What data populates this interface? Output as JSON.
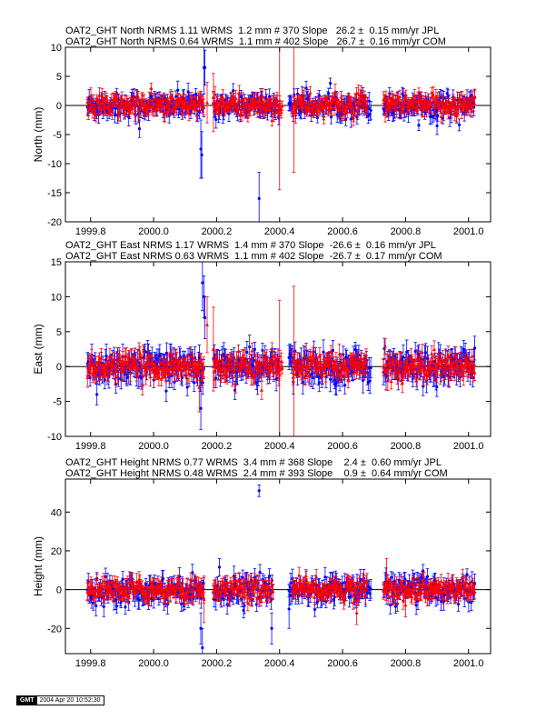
{
  "panels": [
    {
      "header_lines": [
        {
          "text": "OAT2_GHT North NRMS 1.11 WRMS  1.2 mm # 370 Slope   26.2 ±  0.15 mm/yr JPL",
          "color": "#0000ff"
        },
        {
          "text": "OAT2_GHT North NRMS 0.64 WRMS  1.1 mm # 402 Slope   26.7 ±  0.16 mm/yr COM",
          "color": "#ff0000"
        }
      ],
      "ylabel": "North (mm)"
    },
    {
      "header_lines": [
        {
          "text": "OAT2_GHT East NRMS 1.17 WRMS  1.4 mm # 370 Slope  -26.6 ±  0.16 mm/yr JPL",
          "color": "#0000ff"
        },
        {
          "text": "OAT2_GHT East NRMS 0.63 WRMS  1.1 mm # 402 Slope  -26.7 ±  0.17 mm/yr COM",
          "color": "#ff0000"
        }
      ],
      "ylabel": "East (mm)"
    },
    {
      "header_lines": [
        {
          "text": "OAT2_GHT Height NRMS 0.77 WRMS  3.4 mm # 368 Slope    2.4 ±  0.60 mm/yr JPL",
          "color": "#0000ff"
        },
        {
          "text": "OAT2_GHT Height NRMS 0.48 WRMS  2.4 mm # 393 Slope    0.9 ±  0.64 mm/yr COM",
          "color": "#ff0000"
        }
      ],
      "ylabel": "Height (mm)"
    }
  ],
  "gmt_badge": {
    "logo": "GMT",
    "stamp": "2004 Apr 20 10:52:30"
  },
  "chart_data": [
    {
      "type": "scatter",
      "title": "",
      "xlabel": "",
      "ylabel": "North (mm)",
      "xlim": [
        1999.72,
        2001.07
      ],
      "ylim": [
        -20,
        10
      ],
      "xticks": [
        "1999.8",
        "2000.0",
        "2000.2",
        "2000.4",
        "2000.6",
        "2000.8",
        "2001.0"
      ],
      "yticks": [
        "-20",
        "-15",
        "-10",
        "-5",
        "0",
        "5",
        "10"
      ],
      "zero_line": true,
      "series": [
        {
          "name": "JPL",
          "color": "#0000ff",
          "marker": "circle",
          "spread_sd": 1.0,
          "error_mm": 1.2,
          "segments": [
            [
              1999.79,
              2000.16
            ],
            [
              2000.19,
              2000.4
            ],
            [
              2000.43,
              2000.69
            ],
            [
              2000.73,
              2001.02
            ]
          ],
          "points": [
            {
              "x": 2000.15,
              "y": -7.5,
              "err": 5.0
            },
            {
              "x": 2000.153,
              "y": -8.5,
              "err": 4.0
            },
            {
              "x": 2000.16,
              "y": 6.5,
              "err": 4.5
            },
            {
              "x": 2000.163,
              "y": 6.5,
              "err": 3.0
            },
            {
              "x": 2000.335,
              "y": -16.0,
              "err": 4.5
            },
            {
              "x": 1999.955,
              "y": -4.0,
              "err": 1.5
            },
            {
              "x": 2000.9,
              "y": -3.5,
              "err": 1.5
            }
          ]
        },
        {
          "name": "COM",
          "color": "#ff0000",
          "marker": "triangle",
          "spread_sd": 0.9,
          "error_mm": 1.1,
          "segments": [
            [
              1999.79,
              2000.16
            ],
            [
              2000.19,
              2000.41
            ],
            [
              2000.44,
              2000.68
            ],
            [
              2000.73,
              2001.02
            ]
          ],
          "points": [
            {
              "x": 2000.17,
              "y": 0.5,
              "err": 3.5
            },
            {
              "x": 2000.19,
              "y": 0.5,
              "err": 5.0
            },
            {
              "x": 2000.4,
              "y": -0.5,
              "err": 14.0
            },
            {
              "x": 2000.445,
              "y": 0.0,
              "err": 11.5
            },
            {
              "x": 2000.65,
              "y": 2.0,
              "err": 1.5
            }
          ]
        }
      ]
    },
    {
      "type": "scatter",
      "title": "",
      "xlabel": "",
      "ylabel": "East (mm)",
      "xlim": [
        1999.72,
        2001.07
      ],
      "ylim": [
        -10,
        15
      ],
      "xticks": [
        "1999.8",
        "2000.0",
        "2000.2",
        "2000.4",
        "2000.6",
        "2000.8",
        "2001.0"
      ],
      "yticks": [
        "-10",
        "-5",
        "0",
        "5",
        "10",
        "15"
      ],
      "zero_line": true,
      "series": [
        {
          "name": "JPL",
          "color": "#0000ff",
          "marker": "circle",
          "spread_sd": 1.2,
          "error_mm": 1.4,
          "segments": [
            [
              1999.79,
              2000.16
            ],
            [
              2000.19,
              2000.4
            ],
            [
              2000.43,
              2000.69
            ],
            [
              2000.73,
              2001.02
            ]
          ],
          "points": [
            {
              "x": 2000.15,
              "y": -6.0,
              "err": 3.0
            },
            {
              "x": 2000.155,
              "y": 12.0,
              "err": 4.0
            },
            {
              "x": 2000.16,
              "y": 10.0,
              "err": 3.0
            },
            {
              "x": 2000.163,
              "y": 7.0,
              "err": 3.0
            },
            {
              "x": 2000.33,
              "y": -1.0,
              "err": 3.0
            },
            {
              "x": 1999.82,
              "y": -4.0,
              "err": 1.5
            },
            {
              "x": 2000.04,
              "y": -3.5,
              "err": 1.5
            }
          ]
        },
        {
          "name": "COM",
          "color": "#ff0000",
          "marker": "triangle",
          "spread_sd": 0.9,
          "error_mm": 1.1,
          "segments": [
            [
              1999.79,
              2000.16
            ],
            [
              2000.19,
              2000.41
            ],
            [
              2000.44,
              2000.68
            ],
            [
              2000.73,
              2001.02
            ]
          ],
          "points": [
            {
              "x": 2000.145,
              "y": -3.0,
              "err": 3.5
            },
            {
              "x": 2000.17,
              "y": 6.0,
              "err": 4.0
            },
            {
              "x": 2000.19,
              "y": 2.5,
              "err": 6.0
            },
            {
              "x": 2000.4,
              "y": -0.5,
              "err": 10.0
            },
            {
              "x": 2000.445,
              "y": -1.0,
              "err": 12.5
            }
          ]
        }
      ]
    },
    {
      "type": "scatter",
      "title": "",
      "xlabel": "",
      "ylabel": "Height (mm)",
      "xlim": [
        1999.72,
        2001.07
      ],
      "ylim": [
        -33,
        57
      ],
      "xticks": [
        "1999.8",
        "2000.0",
        "2000.2",
        "2000.4",
        "2000.6",
        "2000.8",
        "2001.0"
      ],
      "yticks": [
        "-20",
        "0",
        "20",
        "40"
      ],
      "zero_line": true,
      "series": [
        {
          "name": "JPL",
          "color": "#0000ff",
          "marker": "circle",
          "spread_sd": 3.4,
          "error_mm": 4.0,
          "segments": [
            [
              1999.79,
              2000.16
            ],
            [
              2000.19,
              2000.38
            ],
            [
              2000.43,
              2000.69
            ],
            [
              2000.73,
              2001.02
            ]
          ],
          "points": [
            {
              "x": 2000.155,
              "y": -30.0,
              "err": 10.0
            },
            {
              "x": 2000.15,
              "y": -20.0,
              "err": 8.0
            },
            {
              "x": 2000.335,
              "y": 51.0,
              "err": 3.0
            },
            {
              "x": 2000.375,
              "y": -20.0,
              "err": 8.0
            },
            {
              "x": 2000.43,
              "y": -10.0,
              "err": 10.0
            }
          ]
        },
        {
          "name": "COM",
          "color": "#ff0000",
          "marker": "triangle",
          "spread_sd": 2.6,
          "error_mm": 3.5,
          "segments": [
            [
              1999.79,
              2000.16
            ],
            [
              2000.19,
              2000.38
            ],
            [
              2000.44,
              2000.68
            ],
            [
              2000.73,
              2001.02
            ]
          ],
          "points": [
            {
              "x": 2000.16,
              "y": -5.0,
              "err": 12.0
            },
            {
              "x": 2000.645,
              "y": -12.0,
              "err": 6.0
            },
            {
              "x": 2000.74,
              "y": 8.0,
              "err": 8.0
            },
            {
              "x": 2000.8,
              "y": -8.0,
              "err": 6.0
            }
          ]
        }
      ]
    }
  ]
}
